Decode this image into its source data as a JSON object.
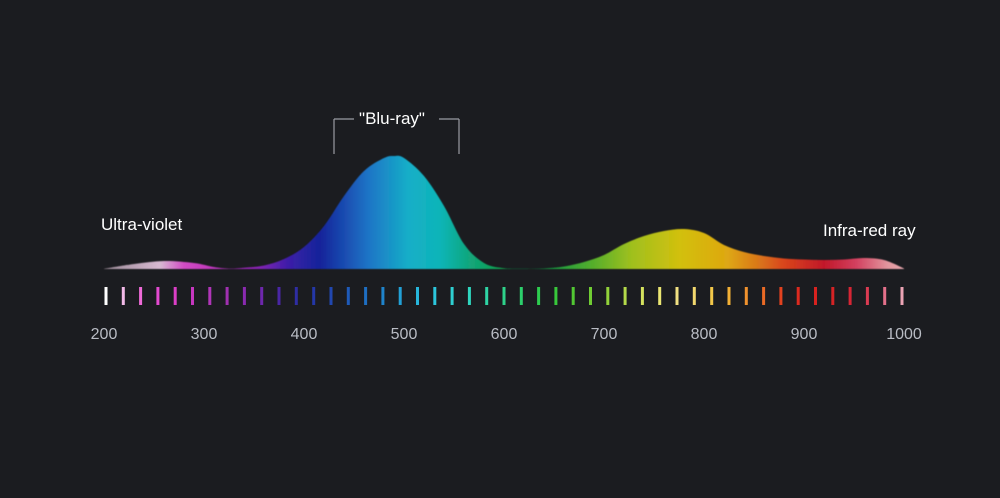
{
  "chart_data": {
    "type": "area",
    "title": "",
    "xlabel": "",
    "ylabel": "",
    "xlim": [
      200,
      1000
    ],
    "x_ticks": [
      200,
      300,
      400,
      500,
      600,
      700,
      800,
      900,
      1000
    ],
    "grid": false,
    "annotations": {
      "ultraviolet": "Ultra-violet",
      "bluray": "\"Blu-ray\"",
      "infrared": "Infra-red ray"
    },
    "bluray_range": [
      430,
      555
    ],
    "series": [
      {
        "x": [
          200,
          230,
          260,
          290,
          310,
          325,
          340,
          360,
          380,
          400,
          420,
          440,
          460,
          480,
          490,
          500,
          520,
          540,
          560,
          580,
          600,
          620,
          640,
          660,
          680,
          700,
          720,
          740,
          760,
          780,
          800,
          820,
          840,
          860,
          880,
          900,
          920,
          940,
          960,
          980,
          1000
        ],
        "y": [
          0.2,
          5,
          8,
          6,
          2,
          0.4,
          1.3,
          3.5,
          10,
          22,
          43,
          73,
          98,
          111,
          113,
          111,
          93,
          63,
          25,
          6,
          0.8,
          0.2,
          0.5,
          2.5,
          7,
          14,
          25,
          33,
          38,
          40,
          36,
          24,
          17,
          13,
          10.5,
          9.5,
          9,
          9.5,
          11,
          9,
          0.5
        ]
      }
    ],
    "spectrum_bar_colors": [
      "#ffffff",
      "#f2b9e8",
      "#ef6ad8",
      "#e34ad0",
      "#db3ec6",
      "#c737c0",
      "#b035b8",
      "#a030b0",
      "#8a2ab0",
      "#6e27ad",
      "#4a26a5",
      "#2f2da3",
      "#2437a8",
      "#2147b0",
      "#1e5ab9",
      "#1e6ec2",
      "#1f84cc",
      "#22a0d6",
      "#27b6dc",
      "#2cc6dc",
      "#2fd0d2",
      "#2fd6bf",
      "#2fd4a5",
      "#2ed28a",
      "#2ccf6c",
      "#2dcc4f",
      "#38c83b",
      "#52c833",
      "#70cc33",
      "#92d23a",
      "#b4da4a",
      "#d5e25e",
      "#ebe673",
      "#f0e082",
      "#f2d86e",
      "#f3c84a",
      "#f2b036",
      "#f0922e",
      "#ea6a25",
      "#e3421f",
      "#dc2a1f",
      "#d8221f",
      "#d62325",
      "#d72534",
      "#db3b52",
      "#e3708a",
      "#eba3b4"
    ]
  }
}
